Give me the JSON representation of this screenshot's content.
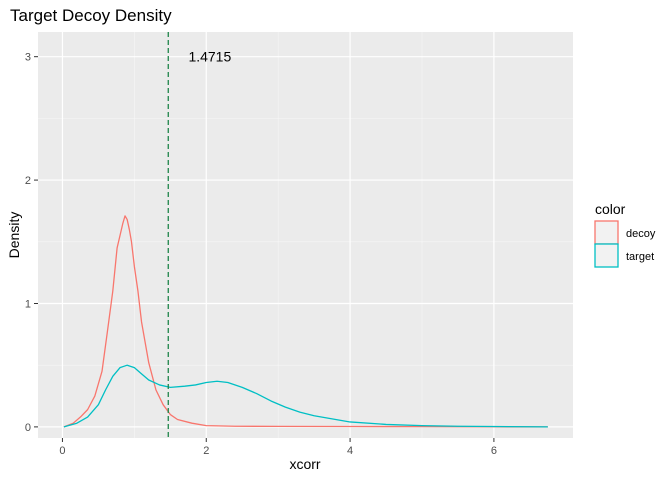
{
  "chart_data": {
    "type": "line",
    "title": "Target Decoy Density",
    "xlabel": "xcorr",
    "ylabel": "Density",
    "xlim": [
      -0.34,
      7.1
    ],
    "ylim": [
      -0.09,
      3.2
    ],
    "xticks": [
      0,
      2,
      4,
      6
    ],
    "yticks": [
      0,
      1,
      2,
      3
    ],
    "grid": true,
    "threshold": {
      "value": 1.4715,
      "label": "1.4715",
      "color": "#1e8449",
      "style": "dashed"
    },
    "legend": {
      "title": "color",
      "position": "right"
    },
    "series": [
      {
        "name": "decoy",
        "color": "#F8766D",
        "x": [
          0.02,
          0.15,
          0.25,
          0.35,
          0.45,
          0.55,
          0.62,
          0.7,
          0.76,
          0.8,
          0.84,
          0.87,
          0.9,
          0.93,
          0.96,
          1.0,
          1.05,
          1.1,
          1.2,
          1.3,
          1.4,
          1.5,
          1.6,
          1.8,
          2.0,
          2.4,
          3.0,
          4.0,
          5.0,
          6.0,
          6.75
        ],
        "y": [
          0.0,
          0.03,
          0.08,
          0.14,
          0.25,
          0.45,
          0.75,
          1.1,
          1.45,
          1.55,
          1.65,
          1.71,
          1.68,
          1.6,
          1.5,
          1.3,
          1.1,
          0.85,
          0.52,
          0.3,
          0.18,
          0.1,
          0.06,
          0.03,
          0.01,
          0.005,
          0.004,
          0.003,
          0.002,
          0.001,
          0.0
        ]
      },
      {
        "name": "target",
        "color": "#00BFC4",
        "x": [
          0.02,
          0.2,
          0.35,
          0.5,
          0.6,
          0.7,
          0.8,
          0.9,
          1.0,
          1.1,
          1.2,
          1.35,
          1.5,
          1.7,
          1.85,
          2.0,
          2.15,
          2.3,
          2.5,
          2.7,
          2.9,
          3.1,
          3.3,
          3.5,
          3.8,
          4.0,
          4.5,
          5.0,
          5.5,
          6.0,
          6.5,
          6.75
        ],
        "y": [
          0.0,
          0.03,
          0.08,
          0.18,
          0.3,
          0.41,
          0.48,
          0.5,
          0.48,
          0.43,
          0.38,
          0.34,
          0.32,
          0.33,
          0.34,
          0.36,
          0.37,
          0.36,
          0.32,
          0.27,
          0.21,
          0.16,
          0.12,
          0.09,
          0.06,
          0.04,
          0.02,
          0.01,
          0.005,
          0.003,
          0.001,
          0.0
        ]
      }
    ]
  }
}
